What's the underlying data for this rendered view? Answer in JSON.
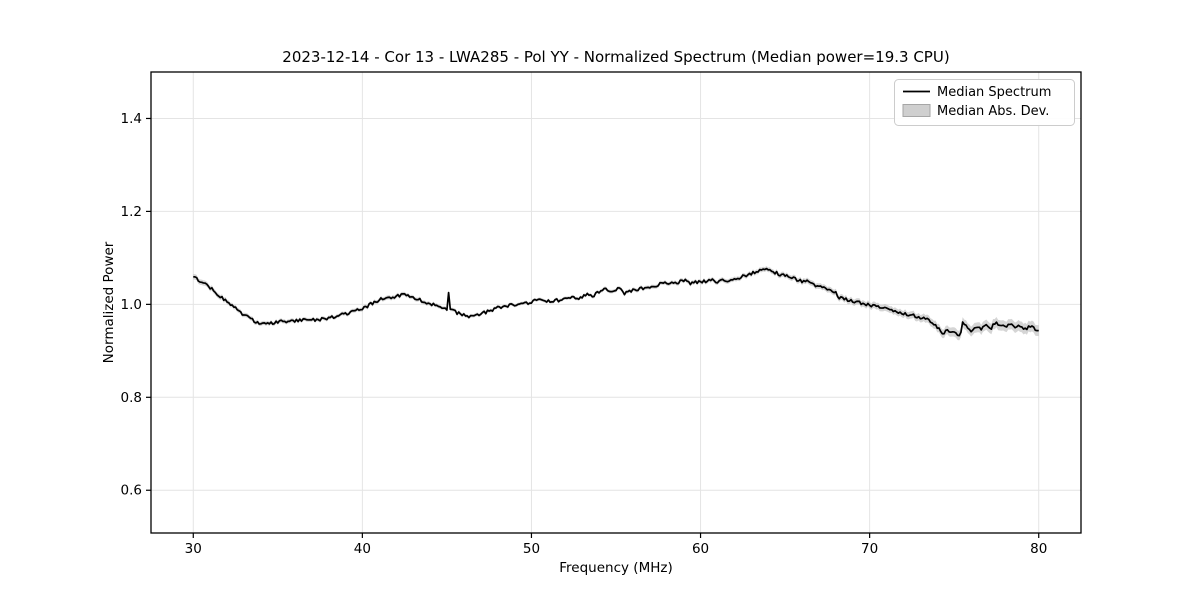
{
  "figure": {
    "background": "#ffffff"
  },
  "chart_data": {
    "type": "line",
    "title": "2023-12-14 - Cor 13 - LWA285 - Pol YY - Normalized Spectrum (Median power=19.3 CPU)",
    "xlabel": "Frequency (MHz)",
    "ylabel": "Normalized Power",
    "xlim": [
      27.5,
      82.5
    ],
    "ylim": [
      0.508,
      1.5
    ],
    "xticks": [
      30,
      40,
      50,
      60,
      70,
      80
    ],
    "xtick_labels": [
      "30",
      "40",
      "50",
      "60",
      "70",
      "80"
    ],
    "yticks": [
      0.6,
      0.8,
      1.0,
      1.2,
      1.4
    ],
    "ytick_labels": [
      "0.6",
      "0.8",
      "1.0",
      "1.2",
      "1.4"
    ],
    "grid": true,
    "colors": {
      "grid": "#e4e4e4",
      "spine": "#000000",
      "background": "#ffffff"
    },
    "legend": {
      "position": "upper right",
      "entries": [
        {
          "label": "Median Spectrum",
          "type": "line",
          "color": "#000000"
        },
        {
          "label": "Median Abs. Dev.",
          "type": "patch",
          "fill": "#cfcfcf",
          "edge": "#a6a6a6"
        }
      ]
    },
    "noise": {
      "amplitude": 0.0035,
      "step_mhz": 0.1,
      "seed": 7
    },
    "series": [
      {
        "name": "Median Spectrum",
        "style": "line",
        "color": "#000000",
        "linewidth": 1.7,
        "points": [
          [
            30.0,
            1.06
          ],
          [
            30.2,
            1.055
          ],
          [
            30.5,
            1.048
          ],
          [
            31.0,
            1.036
          ],
          [
            31.5,
            1.021
          ],
          [
            32.0,
            1.006
          ],
          [
            32.5,
            0.991
          ],
          [
            33.0,
            0.978
          ],
          [
            33.4,
            0.968
          ],
          [
            33.8,
            0.961
          ],
          [
            34.2,
            0.958
          ],
          [
            34.6,
            0.959
          ],
          [
            35.0,
            0.962
          ],
          [
            35.5,
            0.963
          ],
          [
            36.0,
            0.965
          ],
          [
            36.5,
            0.966
          ],
          [
            37.0,
            0.967
          ],
          [
            37.5,
            0.968
          ],
          [
            38.0,
            0.971
          ],
          [
            38.4,
            0.974
          ],
          [
            38.8,
            0.978
          ],
          [
            39.2,
            0.981
          ],
          [
            39.6,
            0.986
          ],
          [
            40.0,
            0.992
          ],
          [
            40.4,
            0.998
          ],
          [
            40.8,
            1.006
          ],
          [
            41.2,
            1.012
          ],
          [
            41.6,
            1.014
          ],
          [
            42.0,
            1.017
          ],
          [
            42.4,
            1.021
          ],
          [
            42.8,
            1.018
          ],
          [
            43.2,
            1.013
          ],
          [
            43.6,
            1.007
          ],
          [
            44.0,
            1.001
          ],
          [
            44.4,
            0.996
          ],
          [
            44.7,
            0.993
          ],
          [
            45.0,
            0.99
          ],
          [
            45.08,
            1.036
          ],
          [
            45.16,
            0.988
          ],
          [
            45.6,
            0.982
          ],
          [
            46.0,
            0.978
          ],
          [
            46.4,
            0.974
          ],
          [
            46.8,
            0.976
          ],
          [
            47.2,
            0.982
          ],
          [
            47.6,
            0.987
          ],
          [
            48.0,
            0.992
          ],
          [
            48.5,
            0.996
          ],
          [
            49.0,
            0.999
          ],
          [
            49.5,
            1.001
          ],
          [
            50.0,
            1.004
          ],
          [
            50.4,
            1.01
          ],
          [
            50.8,
            1.005
          ],
          [
            51.2,
            1.007
          ],
          [
            51.6,
            1.009
          ],
          [
            52.0,
            1.011
          ],
          [
            52.4,
            1.014
          ],
          [
            52.8,
            1.013
          ],
          [
            53.1,
            1.018
          ],
          [
            53.4,
            1.022
          ],
          [
            53.6,
            1.017
          ],
          [
            54.0,
            1.027
          ],
          [
            54.4,
            1.033
          ],
          [
            54.7,
            1.027
          ],
          [
            55.0,
            1.031
          ],
          [
            55.3,
            1.035
          ],
          [
            55.5,
            1.022
          ],
          [
            55.8,
            1.028
          ],
          [
            56.0,
            1.03
          ],
          [
            56.4,
            1.033
          ],
          [
            56.8,
            1.036
          ],
          [
            57.2,
            1.04
          ],
          [
            57.6,
            1.043
          ],
          [
            58.0,
            1.045
          ],
          [
            58.4,
            1.046
          ],
          [
            58.8,
            1.049
          ],
          [
            59.1,
            1.051
          ],
          [
            59.4,
            1.046
          ],
          [
            59.7,
            1.049
          ],
          [
            60.0,
            1.046
          ],
          [
            60.3,
            1.05
          ],
          [
            60.7,
            1.052
          ],
          [
            61.0,
            1.049
          ],
          [
            61.4,
            1.051
          ],
          [
            61.7,
            1.047
          ],
          [
            62.0,
            1.055
          ],
          [
            62.4,
            1.059
          ],
          [
            62.8,
            1.064
          ],
          [
            63.2,
            1.069
          ],
          [
            63.6,
            1.074
          ],
          [
            64.0,
            1.074
          ],
          [
            64.4,
            1.069
          ],
          [
            64.8,
            1.063
          ],
          [
            65.2,
            1.06
          ],
          [
            65.6,
            1.054
          ],
          [
            66.0,
            1.05
          ],
          [
            66.3,
            1.052
          ],
          [
            66.6,
            1.044
          ],
          [
            67.0,
            1.039
          ],
          [
            67.4,
            1.036
          ],
          [
            67.8,
            1.03
          ],
          [
            68.0,
            1.027
          ],
          [
            68.12,
            1.016
          ],
          [
            68.4,
            1.013
          ],
          [
            68.7,
            1.01
          ],
          [
            69.0,
            1.008
          ],
          [
            69.4,
            1.004
          ],
          [
            69.7,
            1.001
          ],
          [
            70.0,
            0.999
          ],
          [
            70.4,
            0.995
          ],
          [
            70.8,
            0.991
          ],
          [
            71.2,
            0.988
          ],
          [
            71.6,
            0.984
          ],
          [
            72.0,
            0.98
          ],
          [
            72.4,
            0.978
          ],
          [
            72.8,
            0.974
          ],
          [
            73.2,
            0.969
          ],
          [
            73.6,
            0.964
          ],
          [
            73.9,
            0.955
          ],
          [
            74.1,
            0.948
          ],
          [
            74.35,
            0.937
          ],
          [
            74.6,
            0.944
          ],
          [
            74.85,
            0.94
          ],
          [
            75.1,
            0.936
          ],
          [
            75.35,
            0.931
          ],
          [
            75.5,
            0.959
          ],
          [
            75.8,
            0.949
          ],
          [
            76.0,
            0.944
          ],
          [
            76.3,
            0.953
          ],
          [
            76.6,
            0.947
          ],
          [
            76.9,
            0.955
          ],
          [
            77.2,
            0.95
          ],
          [
            77.45,
            0.963
          ],
          [
            77.7,
            0.954
          ],
          [
            78.0,
            0.951
          ],
          [
            78.3,
            0.957
          ],
          [
            78.6,
            0.95
          ],
          [
            78.9,
            0.953
          ],
          [
            79.2,
            0.948
          ],
          [
            79.5,
            0.952
          ],
          [
            79.8,
            0.947
          ],
          [
            80.0,
            0.944
          ]
        ]
      },
      {
        "name": "Median Abs. Dev.",
        "style": "band",
        "fill": "#b3b3b3",
        "opacity": 0.55,
        "halfwidth_points": [
          [
            30,
            0.006
          ],
          [
            32,
            0.005
          ],
          [
            34,
            0.0045
          ],
          [
            38,
            0.004
          ],
          [
            42,
            0.0045
          ],
          [
            45,
            0.004
          ],
          [
            48,
            0.0035
          ],
          [
            52,
            0.0035
          ],
          [
            56,
            0.004
          ],
          [
            60,
            0.0045
          ],
          [
            63,
            0.005
          ],
          [
            65,
            0.0055
          ],
          [
            67,
            0.006
          ],
          [
            68.5,
            0.0065
          ],
          [
            70,
            0.007
          ],
          [
            72,
            0.0075
          ],
          [
            73.5,
            0.0085
          ],
          [
            74.5,
            0.0095
          ],
          [
            75.5,
            0.0105
          ],
          [
            77,
            0.011
          ],
          [
            78.5,
            0.0112
          ],
          [
            80,
            0.0118
          ]
        ]
      }
    ]
  }
}
